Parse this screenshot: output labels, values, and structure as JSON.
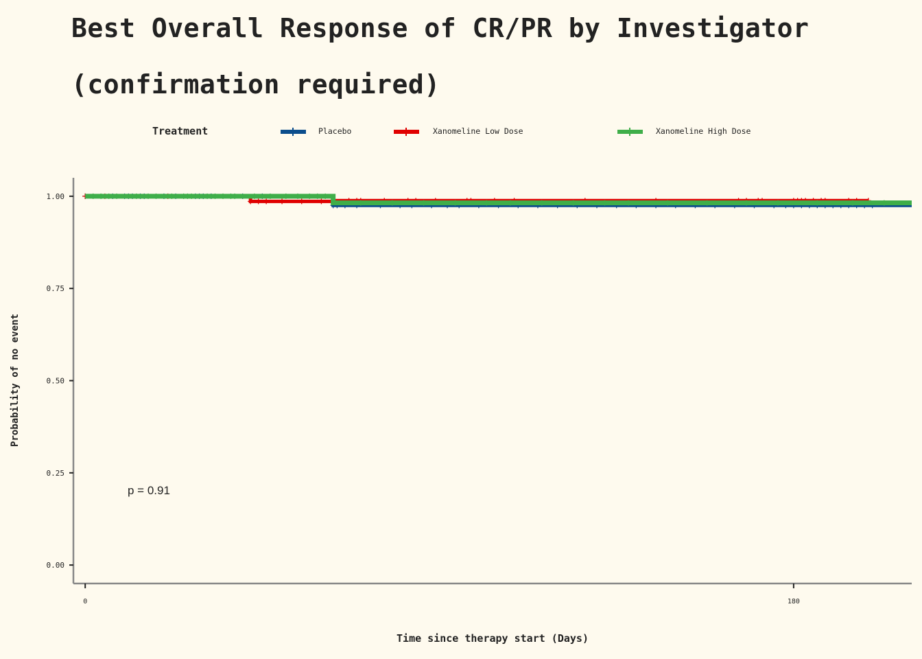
{
  "chart_data": {
    "type": "line",
    "title": "Best Overall Response of CR/PR by Investigator (confirmation required)",
    "xlabel": "Time since therapy start (Days)",
    "ylabel": "Probability of no event",
    "legend_title": "Treatment",
    "legend_position": "top",
    "annotation": "p = 0.91",
    "xlim": [
      -3,
      210
    ],
    "ylim": [
      -0.05,
      1.05
    ],
    "x_ticks": [
      0,
      180
    ],
    "x_tick_labels": [
      "0",
      "180"
    ],
    "y_ticks": [
      0,
      0.25,
      0.5,
      0.75,
      1
    ],
    "y_tick_labels": [
      "0.00",
      "0.25",
      "0.50",
      "0.75",
      "1.00"
    ],
    "grid": false,
    "series": [
      {
        "name": "Placebo",
        "color": "#0b4d8c",
        "steps": [
          [
            0,
            1.0
          ],
          [
            63,
            0.975
          ],
          [
            210,
            0.975
          ]
        ],
        "censor_times": [
          0,
          7,
          10,
          11,
          12,
          14,
          15,
          20,
          23,
          28,
          29,
          30,
          32,
          40,
          45,
          63,
          64,
          66,
          69,
          75,
          80,
          83,
          88,
          92,
          95,
          100,
          105,
          110,
          115,
          120,
          125,
          130,
          135,
          140,
          145,
          150,
          155,
          160,
          165,
          170,
          175,
          178,
          180,
          182,
          184,
          186,
          188,
          190,
          192,
          194,
          196,
          198,
          200
        ]
      },
      {
        "name": "Xanomeline Low Dose",
        "color": "#e00000",
        "steps": [
          [
            0,
            1.0
          ],
          [
            42,
            0.986
          ],
          [
            63,
            0.988
          ],
          [
            199,
            0.988
          ]
        ],
        "censor_times": [
          0,
          5,
          21,
          42,
          44,
          46,
          50,
          55,
          60,
          67,
          69,
          70,
          76,
          82,
          84,
          89,
          97,
          98,
          104,
          109,
          127,
          145,
          166,
          168,
          171,
          172,
          180,
          181,
          182,
          183,
          185,
          187,
          188,
          194,
          196,
          199
        ]
      },
      {
        "name": "Xanomeline High Dose",
        "color": "#3fae49",
        "steps": [
          [
            0,
            1.0
          ],
          [
            63,
            0.982
          ],
          [
            210,
            0.982
          ]
        ],
        "censor_times": [
          2,
          4,
          6,
          8,
          13,
          16,
          18,
          22,
          25,
          26,
          27,
          31,
          33,
          35,
          37,
          38,
          43,
          47,
          51,
          54,
          57,
          59,
          61,
          70,
          78,
          86,
          94,
          102,
          108,
          116,
          124,
          132,
          138,
          148,
          158,
          168,
          176,
          186,
          195,
          203
        ]
      }
    ]
  }
}
